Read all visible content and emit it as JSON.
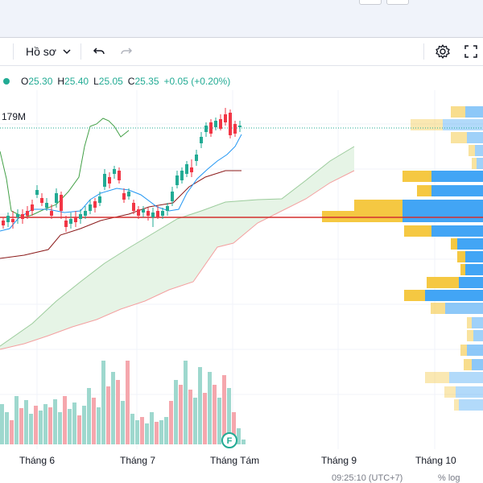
{
  "toolbar": {
    "profile_label": "Hồ sơ",
    "undo_icon": "undo-icon",
    "redo_icon": "redo-icon",
    "settings_icon": "gear-icon",
    "fullscreen_icon": "fullscreen-icon"
  },
  "legend": {
    "open_key": "O",
    "open": "25.30",
    "high_key": "H",
    "high": "25.40",
    "low_key": "L",
    "low": "25.05",
    "close_key": "C",
    "close": "25.35",
    "change": "+0.05 (+0.20%)",
    "dot_color": "#22ab94"
  },
  "volume_label": "179M",
  "x_axis": {
    "labels": [
      "Tháng 6",
      "Tháng 7",
      "Tháng Tám",
      "Tháng 9",
      "Tháng 10"
    ]
  },
  "event_marker": "F",
  "bottom_bar": {
    "time_text": "09:25:10 (UTC+7)",
    "pct_text": "% log"
  },
  "colors": {
    "up": "#22ab94",
    "down": "#f23645",
    "volume_up": "#9ed8ce",
    "volume_down": "#f5a7ad",
    "cloud": "#e3f2e3",
    "tenkan": "#2196f3",
    "kijun": "#8b1a1a",
    "lagging": "#43a047",
    "price_line": "#d32f2f",
    "vp_up": "#f5c842",
    "vp_down": "#42a5f5"
  }
}
